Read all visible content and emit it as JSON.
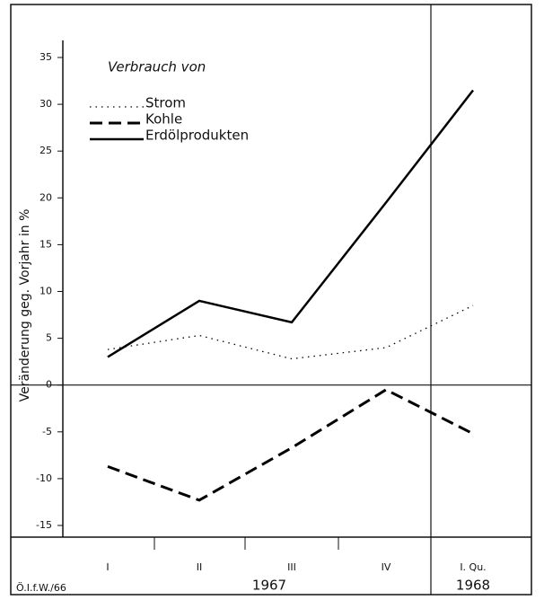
{
  "chart_data": {
    "type": "line",
    "title": "Verbrauch von",
    "y_label": "Veränderung geg. Vorjahr in %",
    "categories": [
      "I",
      "II",
      "III",
      "IV",
      "I. Qu."
    ],
    "groups": [
      "1967",
      "1968"
    ],
    "source": "Ö.I.f.W./66",
    "series": [
      {
        "name": "Strom",
        "color": "#000000",
        "style": "dotted",
        "values": [
          3.8,
          5.3,
          2.8,
          4,
          8.5
        ]
      },
      {
        "name": "Kohle",
        "color": "#000000",
        "style": "dashed",
        "values": [
          -8.7,
          -12.3,
          -6.7,
          -0.5,
          -5.2
        ]
      },
      {
        "name": "Erdölprodukten",
        "color": "#000000",
        "style": "solid",
        "values": [
          3,
          9,
          6.7,
          19.5,
          31.5
        ]
      }
    ],
    "ylim": [
      -15,
      35
    ],
    "yticks": [
      -15,
      -10,
      -5,
      0,
      5,
      10,
      15,
      20,
      25,
      30,
      35
    ],
    "grid": false
  }
}
